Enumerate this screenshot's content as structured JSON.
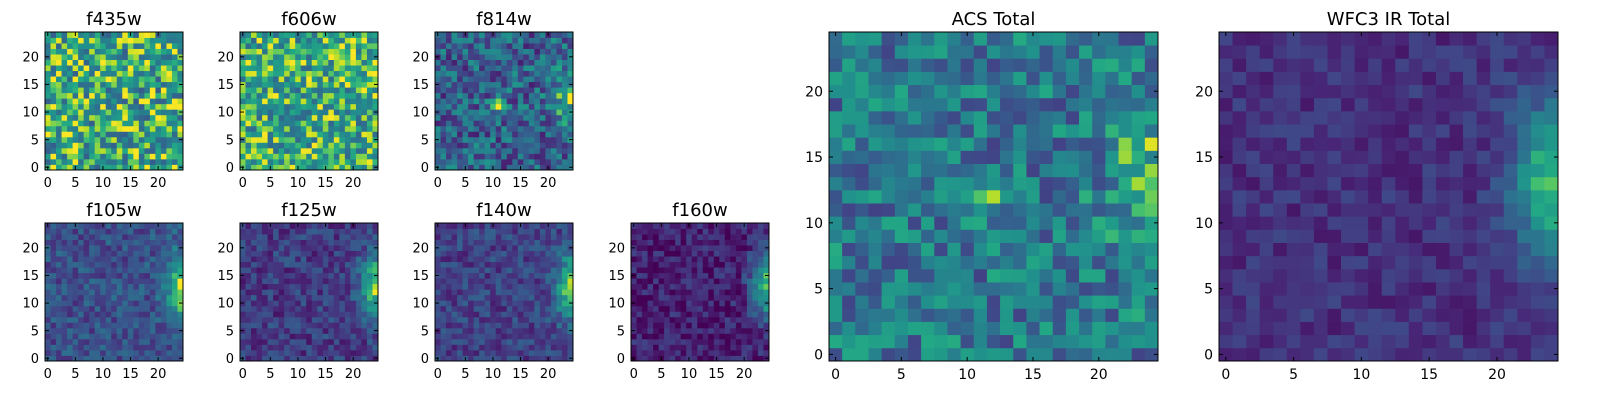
{
  "chart_data": [
    {
      "type": "heatmap",
      "title": "f435w",
      "colormap": "viridis",
      "xticks": [
        "0",
        "5",
        "10",
        "15",
        "20"
      ],
      "yticks": [
        "0",
        "5",
        "10",
        "15",
        "20"
      ],
      "xlim": [
        0,
        25
      ],
      "ylim": [
        0,
        25
      ],
      "grid_size": 25,
      "features": {
        "noise": 0.34,
        "base": 0.7,
        "edge_boost": 0.0,
        "blob": null
      }
    },
    {
      "type": "heatmap",
      "title": "f606w",
      "colormap": "viridis",
      "xticks": [
        "0",
        "5",
        "10",
        "15",
        "20"
      ],
      "yticks": [
        "0",
        "5",
        "10",
        "15",
        "20"
      ],
      "xlim": [
        0,
        25
      ],
      "ylim": [
        0,
        25
      ],
      "grid_size": 25,
      "features": {
        "noise": 0.3,
        "base": 0.72,
        "edge_boost": 0.05,
        "blob": null
      }
    },
    {
      "type": "heatmap",
      "title": "f814w",
      "colormap": "viridis",
      "xticks": [
        "0",
        "5",
        "10",
        "15",
        "20"
      ],
      "yticks": [
        "0",
        "5",
        "10",
        "15",
        "20"
      ],
      "xlim": [
        0,
        25
      ],
      "ylim": [
        0,
        25
      ],
      "grid_size": 25,
      "features": {
        "noise": 0.28,
        "base": 0.45,
        "edge_boost": 0.45,
        "blob": {
          "x": 11,
          "y": 11.5,
          "amp": 0.5
        }
      }
    },
    {
      "type": "heatmap",
      "title": "f105w",
      "colormap": "viridis",
      "xticks": [
        "0",
        "5",
        "10",
        "15",
        "20"
      ],
      "yticks": [
        "0",
        "5",
        "10",
        "15",
        "20"
      ],
      "xlim": [
        0,
        25
      ],
      "ylim": [
        0,
        25
      ],
      "grid_size": 25,
      "features": {
        "noise": 0.16,
        "base": 0.4,
        "edge_boost": 0.6,
        "blob": null
      }
    },
    {
      "type": "heatmap",
      "title": "f125w",
      "colormap": "viridis",
      "xticks": [
        "0",
        "5",
        "10",
        "15",
        "20"
      ],
      "yticks": [
        "0",
        "5",
        "10",
        "15",
        "20"
      ],
      "xlim": [
        0,
        25
      ],
      "ylim": [
        0,
        25
      ],
      "grid_size": 25,
      "features": {
        "noise": 0.16,
        "base": 0.32,
        "edge_boost": 0.65,
        "blob": null
      }
    },
    {
      "type": "heatmap",
      "title": "f140w",
      "colormap": "viridis",
      "xticks": [
        "0",
        "5",
        "10",
        "15",
        "20"
      ],
      "yticks": [
        "0",
        "5",
        "10",
        "15",
        "20"
      ],
      "xlim": [
        0,
        25
      ],
      "ylim": [
        0,
        25
      ],
      "grid_size": 25,
      "features": {
        "noise": 0.15,
        "base": 0.34,
        "edge_boost": 0.65,
        "blob": null
      }
    },
    {
      "type": "heatmap",
      "title": "f160w",
      "colormap": "viridis",
      "xticks": [
        "0",
        "5",
        "10",
        "15",
        "20"
      ],
      "yticks": [
        "0",
        "5",
        "10",
        "15",
        "20"
      ],
      "xlim": [
        0,
        25
      ],
      "ylim": [
        0,
        25
      ],
      "grid_size": 25,
      "features": {
        "noise": 0.15,
        "base": 0.22,
        "edge_boost": 0.75,
        "blob": null
      }
    },
    {
      "type": "heatmap",
      "title": "ACS Total",
      "colormap": "viridis",
      "xticks": [
        "0",
        "5",
        "10",
        "15",
        "20"
      ],
      "yticks": [
        "0",
        "5",
        "10",
        "15",
        "20"
      ],
      "xlim": [
        0,
        25
      ],
      "ylim": [
        0,
        25
      ],
      "grid_size": 25,
      "features": {
        "noise": 0.26,
        "base": 0.55,
        "edge_boost": 0.35,
        "blob": {
          "x": 11,
          "y": 11.5,
          "amp": 0.45
        }
      }
    },
    {
      "type": "heatmap",
      "title": "WFC3 IR Total",
      "colormap": "viridis",
      "xticks": [
        "0",
        "5",
        "10",
        "15",
        "20"
      ],
      "yticks": [
        "0",
        "5",
        "10",
        "15",
        "20"
      ],
      "xlim": [
        0,
        25
      ],
      "ylim": [
        0,
        25
      ],
      "grid_size": 25,
      "features": {
        "noise": 0.1,
        "base": 0.28,
        "edge_boost": 0.7,
        "blob": null
      }
    }
  ]
}
